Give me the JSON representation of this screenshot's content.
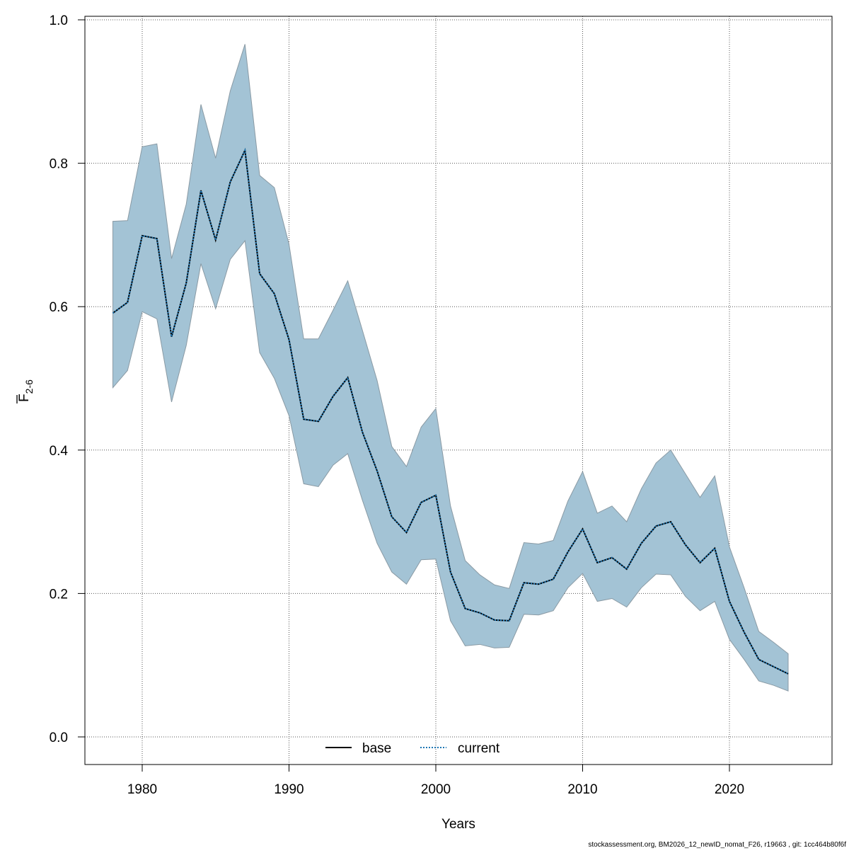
{
  "chart_data": {
    "type": "line",
    "title": "",
    "xlabel": "Years",
    "ylabel": "F",
    "ylabel_subscript": "2-6",
    "xlim": [
      1976,
      2027
    ],
    "ylim": [
      -0.04,
      1.0
    ],
    "xticks": [
      1980,
      1990,
      2000,
      2010,
      2020
    ],
    "yticks": [
      0.0,
      0.2,
      0.4,
      0.6,
      0.8,
      1.0
    ],
    "ytick_labels": [
      "0.0",
      "0.2",
      "0.4",
      "0.6",
      "0.8",
      "1.0"
    ],
    "grid": true,
    "legend_placement": "bottom-center",
    "colors": {
      "band": "#a3c3d5",
      "band_edge": "#8a9aa4",
      "base": "#000000",
      "current": "#1f77b4"
    },
    "x": [
      1978,
      1979,
      1980,
      1981,
      1982,
      1983,
      1984,
      1985,
      1986,
      1987,
      1988,
      1989,
      1990,
      1991,
      1992,
      1993,
      1994,
      1995,
      1996,
      1997,
      1998,
      1999,
      2000,
      2001,
      2002,
      2003,
      2004,
      2005,
      2006,
      2007,
      2008,
      2009,
      2010,
      2011,
      2012,
      2013,
      2014,
      2015,
      2016,
      2017,
      2018,
      2019,
      2020,
      2021,
      2022,
      2023,
      2024
    ],
    "band_upper": [
      0.719,
      0.72,
      0.823,
      0.827,
      0.667,
      0.743,
      0.882,
      0.807,
      0.901,
      0.966,
      0.783,
      0.766,
      0.687,
      0.555,
      0.555,
      0.595,
      0.636,
      0.567,
      0.497,
      0.405,
      0.377,
      0.432,
      0.458,
      0.322,
      0.246,
      0.226,
      0.212,
      0.207,
      0.271,
      0.269,
      0.274,
      0.329,
      0.37,
      0.312,
      0.322,
      0.3,
      0.346,
      0.382,
      0.4,
      0.367,
      0.334,
      0.364,
      0.265,
      0.208,
      0.147,
      0.132,
      0.116
    ],
    "band_lower": [
      0.487,
      0.511,
      0.593,
      0.583,
      0.467,
      0.546,
      0.66,
      0.597,
      0.666,
      0.692,
      0.536,
      0.5,
      0.448,
      0.353,
      0.349,
      0.379,
      0.395,
      0.33,
      0.27,
      0.23,
      0.213,
      0.247,
      0.248,
      0.162,
      0.127,
      0.129,
      0.124,
      0.125,
      0.171,
      0.17,
      0.176,
      0.208,
      0.228,
      0.189,
      0.193,
      0.181,
      0.208,
      0.227,
      0.226,
      0.196,
      0.176,
      0.189,
      0.136,
      0.108,
      0.078,
      0.072,
      0.064
    ],
    "series": [
      {
        "name": "base",
        "style": "solid",
        "values": [
          0.591,
          0.606,
          0.699,
          0.695,
          0.558,
          0.633,
          0.762,
          0.693,
          0.774,
          0.818,
          0.646,
          0.618,
          0.554,
          0.443,
          0.44,
          0.475,
          0.501,
          0.425,
          0.371,
          0.307,
          0.285,
          0.327,
          0.337,
          0.23,
          0.179,
          0.173,
          0.163,
          0.162,
          0.215,
          0.213,
          0.22,
          0.258,
          0.29,
          0.243,
          0.25,
          0.234,
          0.27,
          0.294,
          0.3,
          0.268,
          0.243,
          0.263,
          0.189,
          0.146,
          0.108,
          0.098,
          0.088
        ]
      },
      {
        "name": "current",
        "style": "dotted",
        "values": [
          0.591,
          0.606,
          0.699,
          0.695,
          0.558,
          0.633,
          0.762,
          0.693,
          0.774,
          0.818,
          0.646,
          0.618,
          0.554,
          0.443,
          0.44,
          0.475,
          0.501,
          0.425,
          0.371,
          0.307,
          0.285,
          0.327,
          0.337,
          0.23,
          0.179,
          0.173,
          0.163,
          0.162,
          0.215,
          0.213,
          0.22,
          0.258,
          0.29,
          0.243,
          0.25,
          0.234,
          0.27,
          0.294,
          0.3,
          0.268,
          0.243,
          0.263,
          0.189,
          0.146,
          0.108,
          0.098,
          0.088
        ]
      }
    ]
  },
  "footer": "stockassessment.org, BM2026_12_newID_nomat_F26, r19663 , git: 1cc464b80f6f"
}
